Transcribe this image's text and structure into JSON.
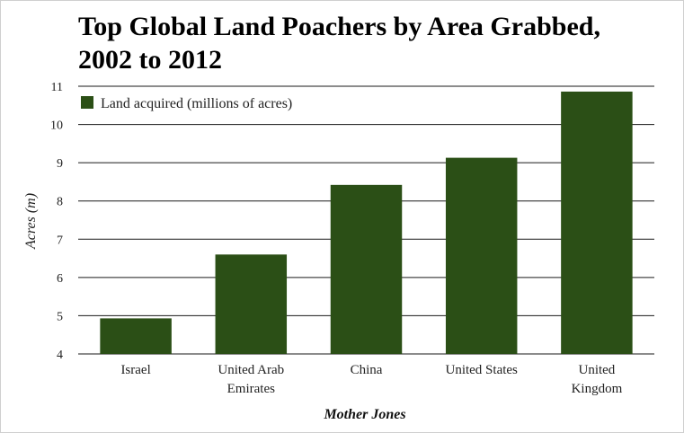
{
  "chart_data": {
    "type": "bar",
    "title": "Top Global Land Poachers by Area Grabbed, 2002 to 2012",
    "ylabel": "Acres (m)",
    "xlabel": "",
    "categories": [
      "Israel",
      "United Arab Emirates",
      "China",
      "United States",
      "United Kingdom"
    ],
    "category_lines": [
      [
        "Israel"
      ],
      [
        "United Arab",
        "Emirates"
      ],
      [
        "China"
      ],
      [
        "United States"
      ],
      [
        "United",
        "Kingdom"
      ]
    ],
    "series": [
      {
        "name": "Land acquired (millions of acres)",
        "values": [
          4.93,
          6.6,
          8.42,
          9.13,
          10.86
        ]
      }
    ],
    "ylim": [
      4,
      11
    ],
    "yticks": [
      4,
      5,
      6,
      7,
      8,
      9,
      10,
      11
    ],
    "grid": true,
    "legend_position": "top-left",
    "bar_color": "#2b4f16",
    "source": "Mother Jones"
  }
}
